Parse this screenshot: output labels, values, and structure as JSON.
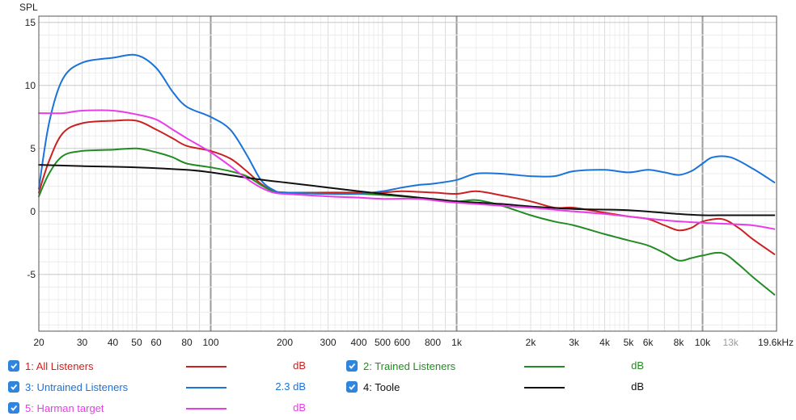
{
  "chart_data": {
    "type": "line",
    "ylabel": "SPL",
    "xlabel": "",
    "x_scale": "log",
    "xlim": [
      20,
      20000
    ],
    "ylim": [
      -9.5,
      15.5
    ],
    "y_ticks": [
      15,
      10,
      5,
      0,
      -5
    ],
    "y_tick_labels": [
      "15",
      "10",
      "5",
      "0",
      "-5"
    ],
    "x_ticks": [
      20,
      30,
      40,
      50,
      60,
      80,
      100,
      200,
      300,
      400,
      500,
      600,
      800,
      1000,
      2000,
      3000,
      4000,
      5000,
      6000,
      8000,
      10000,
      13000,
      19600
    ],
    "x_tick_labels": [
      "20",
      "30",
      "40",
      "50",
      "60",
      "80",
      "100",
      "200",
      "300",
      "400",
      "500",
      "600",
      "800",
      "1k",
      "2k",
      "3k",
      "4k",
      "5k",
      "6k",
      "8k",
      "10k",
      "13k",
      "19.6kHz"
    ],
    "grid": true,
    "series": [
      {
        "name": "1: All Listeners",
        "color": "#cc1f1f",
        "value_label": "dB",
        "points": [
          [
            20,
            1.5
          ],
          [
            22,
            4
          ],
          [
            25,
            6.2
          ],
          [
            30,
            7
          ],
          [
            40,
            7.2
          ],
          [
            50,
            7.2
          ],
          [
            60,
            6.5
          ],
          [
            70,
            5.8
          ],
          [
            80,
            5.2
          ],
          [
            100,
            4.8
          ],
          [
            120,
            4.2
          ],
          [
            140,
            3.2
          ],
          [
            160,
            2.2
          ],
          [
            180,
            1.6
          ],
          [
            200,
            1.5
          ],
          [
            300,
            1.5
          ],
          [
            400,
            1.5
          ],
          [
            500,
            1.5
          ],
          [
            600,
            1.6
          ],
          [
            800,
            1.5
          ],
          [
            1000,
            1.4
          ],
          [
            1200,
            1.6
          ],
          [
            1500,
            1.3
          ],
          [
            2000,
            0.8
          ],
          [
            2500,
            0.3
          ],
          [
            3000,
            0.3
          ],
          [
            4000,
            -0.1
          ],
          [
            5000,
            -0.4
          ],
          [
            6000,
            -0.6
          ],
          [
            7000,
            -1.1
          ],
          [
            8000,
            -1.5
          ],
          [
            9000,
            -1.3
          ],
          [
            10000,
            -0.8
          ],
          [
            12000,
            -0.6
          ],
          [
            14000,
            -1.3
          ],
          [
            16000,
            -2.2
          ],
          [
            19600,
            -3.4
          ]
        ]
      },
      {
        "name": "2: Trained Listeners",
        "color": "#238b23",
        "value_label": "dB",
        "points": [
          [
            20,
            1.2
          ],
          [
            22,
            3
          ],
          [
            25,
            4.4
          ],
          [
            30,
            4.8
          ],
          [
            40,
            4.9
          ],
          [
            50,
            5
          ],
          [
            60,
            4.7
          ],
          [
            70,
            4.3
          ],
          [
            80,
            3.8
          ],
          [
            100,
            3.5
          ],
          [
            120,
            3.2
          ],
          [
            140,
            2.8
          ],
          [
            160,
            2.1
          ],
          [
            180,
            1.6
          ],
          [
            200,
            1.5
          ],
          [
            300,
            1.4
          ],
          [
            400,
            1.4
          ],
          [
            500,
            1.3
          ],
          [
            600,
            1.2
          ],
          [
            800,
            1
          ],
          [
            1000,
            0.8
          ],
          [
            1200,
            0.9
          ],
          [
            1500,
            0.5
          ],
          [
            2000,
            -0.3
          ],
          [
            2500,
            -0.8
          ],
          [
            3000,
            -1.1
          ],
          [
            4000,
            -1.8
          ],
          [
            5000,
            -2.3
          ],
          [
            6000,
            -2.7
          ],
          [
            7000,
            -3.3
          ],
          [
            8000,
            -3.9
          ],
          [
            9000,
            -3.7
          ],
          [
            10000,
            -3.5
          ],
          [
            12000,
            -3.3
          ],
          [
            14000,
            -4.2
          ],
          [
            16000,
            -5.2
          ],
          [
            19600,
            -6.6
          ]
        ]
      },
      {
        "name": "3: Untrained Listeners",
        "color": "#1a73d9",
        "value_label": "2.3 dB",
        "points": [
          [
            20,
            1.8
          ],
          [
            22,
            7
          ],
          [
            25,
            10.5
          ],
          [
            30,
            11.8
          ],
          [
            40,
            12.2
          ],
          [
            50,
            12.4
          ],
          [
            60,
            11.4
          ],
          [
            70,
            9.5
          ],
          [
            80,
            8.3
          ],
          [
            100,
            7.5
          ],
          [
            120,
            6.5
          ],
          [
            140,
            4.5
          ],
          [
            160,
            2.5
          ],
          [
            180,
            1.7
          ],
          [
            200,
            1.5
          ],
          [
            300,
            1.4
          ],
          [
            400,
            1.4
          ],
          [
            500,
            1.6
          ],
          [
            600,
            1.9
          ],
          [
            700,
            2.1
          ],
          [
            800,
            2.2
          ],
          [
            1000,
            2.5
          ],
          [
            1200,
            3
          ],
          [
            1500,
            3
          ],
          [
            2000,
            2.8
          ],
          [
            2500,
            2.8
          ],
          [
            3000,
            3.2
          ],
          [
            4000,
            3.3
          ],
          [
            5000,
            3.1
          ],
          [
            6000,
            3.3
          ],
          [
            7000,
            3.1
          ],
          [
            8000,
            2.9
          ],
          [
            9000,
            3.2
          ],
          [
            10000,
            3.8
          ],
          [
            11000,
            4.3
          ],
          [
            13000,
            4.3
          ],
          [
            16000,
            3.4
          ],
          [
            19600,
            2.3
          ]
        ]
      },
      {
        "name": "4: Toole",
        "color": "#111111",
        "value_label": "dB",
        "points": [
          [
            20,
            3.7
          ],
          [
            30,
            3.6
          ],
          [
            50,
            3.5
          ],
          [
            80,
            3.3
          ],
          [
            100,
            3.1
          ],
          [
            150,
            2.6
          ],
          [
            200,
            2.3
          ],
          [
            300,
            1.9
          ],
          [
            400,
            1.6
          ],
          [
            500,
            1.4
          ],
          [
            700,
            1.1
          ],
          [
            1000,
            0.8
          ],
          [
            1500,
            0.6
          ],
          [
            2000,
            0.4
          ],
          [
            3000,
            0.2
          ],
          [
            5000,
            0.1
          ],
          [
            8000,
            -0.2
          ],
          [
            10000,
            -0.3
          ],
          [
            13000,
            -0.3
          ],
          [
            19600,
            -0.3
          ]
        ]
      },
      {
        "name": "5: Harman target",
        "color": "#e93ce9",
        "value_label": "dB",
        "points": [
          [
            20,
            7.8
          ],
          [
            25,
            7.8
          ],
          [
            30,
            8
          ],
          [
            40,
            8
          ],
          [
            50,
            7.7
          ],
          [
            60,
            7.3
          ],
          [
            70,
            6.5
          ],
          [
            80,
            5.8
          ],
          [
            100,
            4.7
          ],
          [
            120,
            3.6
          ],
          [
            140,
            2.6
          ],
          [
            160,
            1.9
          ],
          [
            180,
            1.5
          ],
          [
            200,
            1.4
          ],
          [
            300,
            1.2
          ],
          [
            400,
            1.1
          ],
          [
            500,
            1
          ],
          [
            700,
            1
          ],
          [
            1000,
            0.7
          ],
          [
            2000,
            0.3
          ],
          [
            3000,
            0
          ],
          [
            4000,
            -0.2
          ],
          [
            5000,
            -0.4
          ],
          [
            7000,
            -0.7
          ],
          [
            10000,
            -0.9
          ],
          [
            13000,
            -1
          ],
          [
            16000,
            -1.1
          ],
          [
            19600,
            -1.4
          ]
        ]
      }
    ]
  }
}
